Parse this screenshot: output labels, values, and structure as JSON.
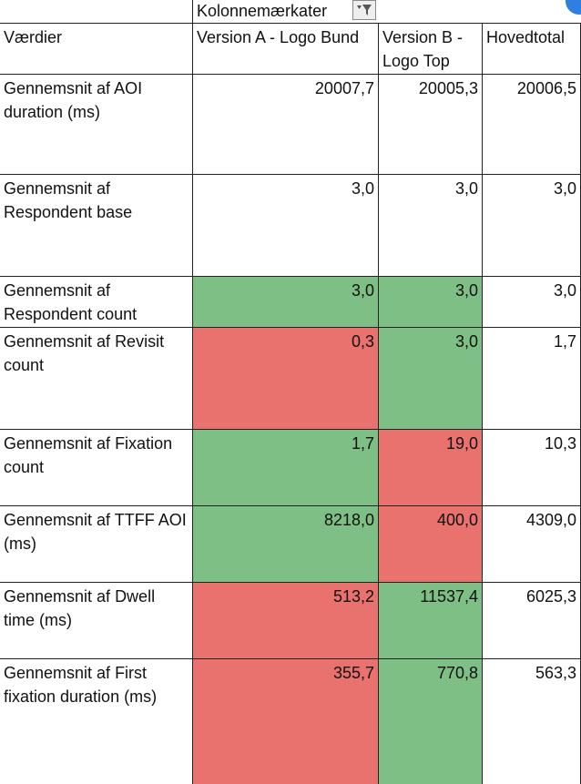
{
  "pivot": {
    "column_labels_header": "Kolonnemærkater",
    "values_header": "Værdier",
    "columns": [
      "Version A - Logo Bund",
      "Version B - Logo Top",
      "Hovedtotal"
    ],
    "rows": [
      {
        "label": "Gennemsnit af AOI duration (ms)",
        "values": [
          "20007,7",
          "20005,3",
          "20006,5"
        ]
      },
      {
        "label": "Gennemsnit af Respondent base",
        "values": [
          "3,0",
          "3,0",
          "3,0"
        ]
      },
      {
        "label": "Gennemsnit af Respondent count",
        "values": [
          "3,0",
          "3,0",
          "3,0"
        ]
      },
      {
        "label": "Gennemsnit af Revisit count",
        "values": [
          "0,3",
          "3,0",
          "1,7"
        ]
      },
      {
        "label": "Gennemsnit af Fixation count",
        "values": [
          "1,7",
          "19,0",
          "10,3"
        ]
      },
      {
        "label": "Gennemsnit af TTFF AOI (ms)",
        "values": [
          "8218,0",
          "400,0",
          "4309,0"
        ]
      },
      {
        "label": "Gennemsnit af Dwell time (ms)",
        "values": [
          "513,2",
          "11537,4",
          "6025,3"
        ]
      },
      {
        "label": "Gennemsnit af First fixation duration (ms)",
        "values": [
          "355,7",
          "770,8",
          "563,3"
        ]
      }
    ],
    "cell_fills": [
      [
        "none",
        "none"
      ],
      [
        "none",
        "none"
      ],
      [
        "green",
        "green"
      ],
      [
        "red",
        "green"
      ],
      [
        "green",
        "red"
      ],
      [
        "green",
        "red"
      ],
      [
        "red",
        "green"
      ],
      [
        "red",
        "green"
      ]
    ]
  },
  "colors": {
    "green": "#7dbf84",
    "red": "#e9726e",
    "grid": "#222222",
    "accent": "#2f7fe0"
  },
  "icons": {
    "filter": "dropdown-filter-icon"
  }
}
